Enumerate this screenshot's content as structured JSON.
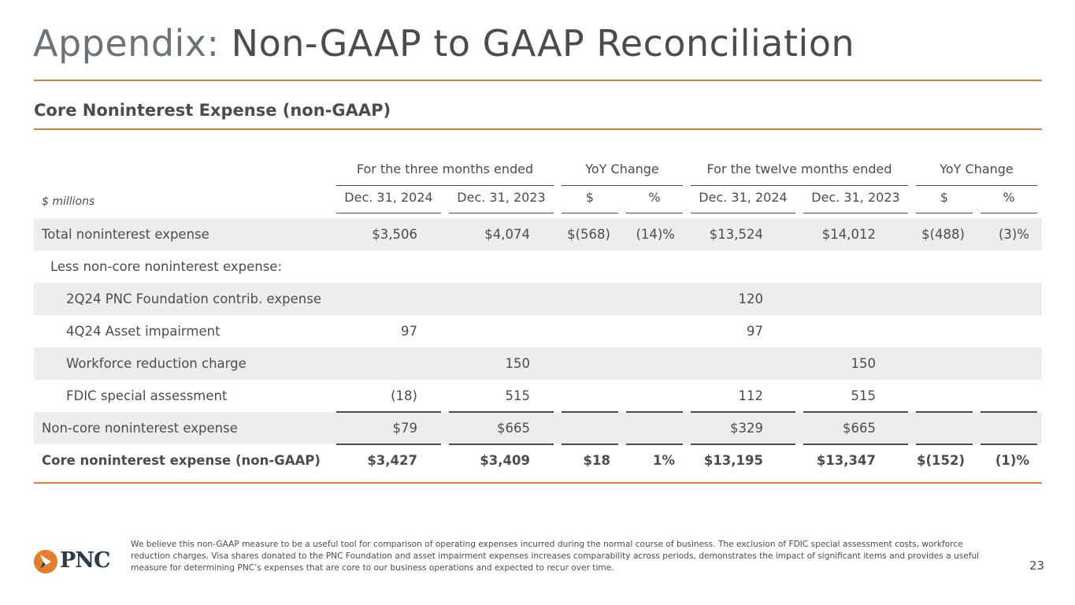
{
  "title": {
    "prefix": "Appendix:",
    "main": "Non-GAAP to GAAP Reconciliation"
  },
  "subtitle": "Core Noninterest Expense (non-GAAP)",
  "table": {
    "groups": [
      "For the three months ended",
      "YoY Change",
      "For the twelve months ended",
      "YoY Change"
    ],
    "units": "$ millions",
    "columns": [
      "Dec. 31, 2024",
      "Dec. 31, 2023",
      "$",
      "%",
      "Dec. 31, 2024",
      "Dec. 31, 2023",
      "$",
      "%"
    ],
    "rows": [
      {
        "label": "Total noninterest expense",
        "values": [
          "$3,506",
          "$4,074",
          "$(568)",
          "(14)%",
          "$13,524",
          "$14,012",
          "$(488)",
          "(3)%"
        ]
      },
      {
        "label": "Less non-core noninterest expense:",
        "values": [
          "",
          "",
          "",
          "",
          "",
          "",
          "",
          ""
        ]
      },
      {
        "label": "2Q24 PNC Foundation contrib. expense",
        "values": [
          "",
          "",
          "",
          "",
          "120",
          "",
          "",
          ""
        ]
      },
      {
        "label": "4Q24 Asset impairment",
        "values": [
          "97",
          "",
          "",
          "",
          "97",
          "",
          "",
          ""
        ]
      },
      {
        "label": "Workforce reduction charge",
        "values": [
          "",
          "150",
          "",
          "",
          "",
          "150",
          "",
          ""
        ]
      },
      {
        "label": "FDIC special assessment",
        "values": [
          "(18)",
          "515",
          "",
          "",
          "112",
          "515",
          "",
          ""
        ]
      },
      {
        "label": "Non-core noninterest expense",
        "values": [
          "$79",
          "$665",
          "",
          "",
          "$329",
          "$665",
          "",
          ""
        ]
      },
      {
        "label": "Core noninterest expense (non-GAAP)",
        "values": [
          "$3,427",
          "$3,409",
          "$18",
          "1%",
          "$13,195",
          "$13,347",
          "$(152)",
          "(1)%"
        ]
      }
    ]
  },
  "footer": {
    "logo_text": "PNC",
    "note": "We believe this non-GAAP measure to be a useful tool for comparison of operating expenses incurred during the normal course of business. The exclusion of FDIC special assessment costs, workforce reduction charges, Visa shares donated to the PNC Foundation and asset impairment expenses increases comparability across periods, demonstrates the impact of significant items and provides a useful measure for determining PNC’s expenses that are core to our business operations and expected to recur over time.",
    "page_number": "23"
  },
  "colors": {
    "accent": "#e27e2e",
    "text": "#4a4c4e",
    "shade": "#ededee",
    "logo_navy": "#2d3b48"
  }
}
